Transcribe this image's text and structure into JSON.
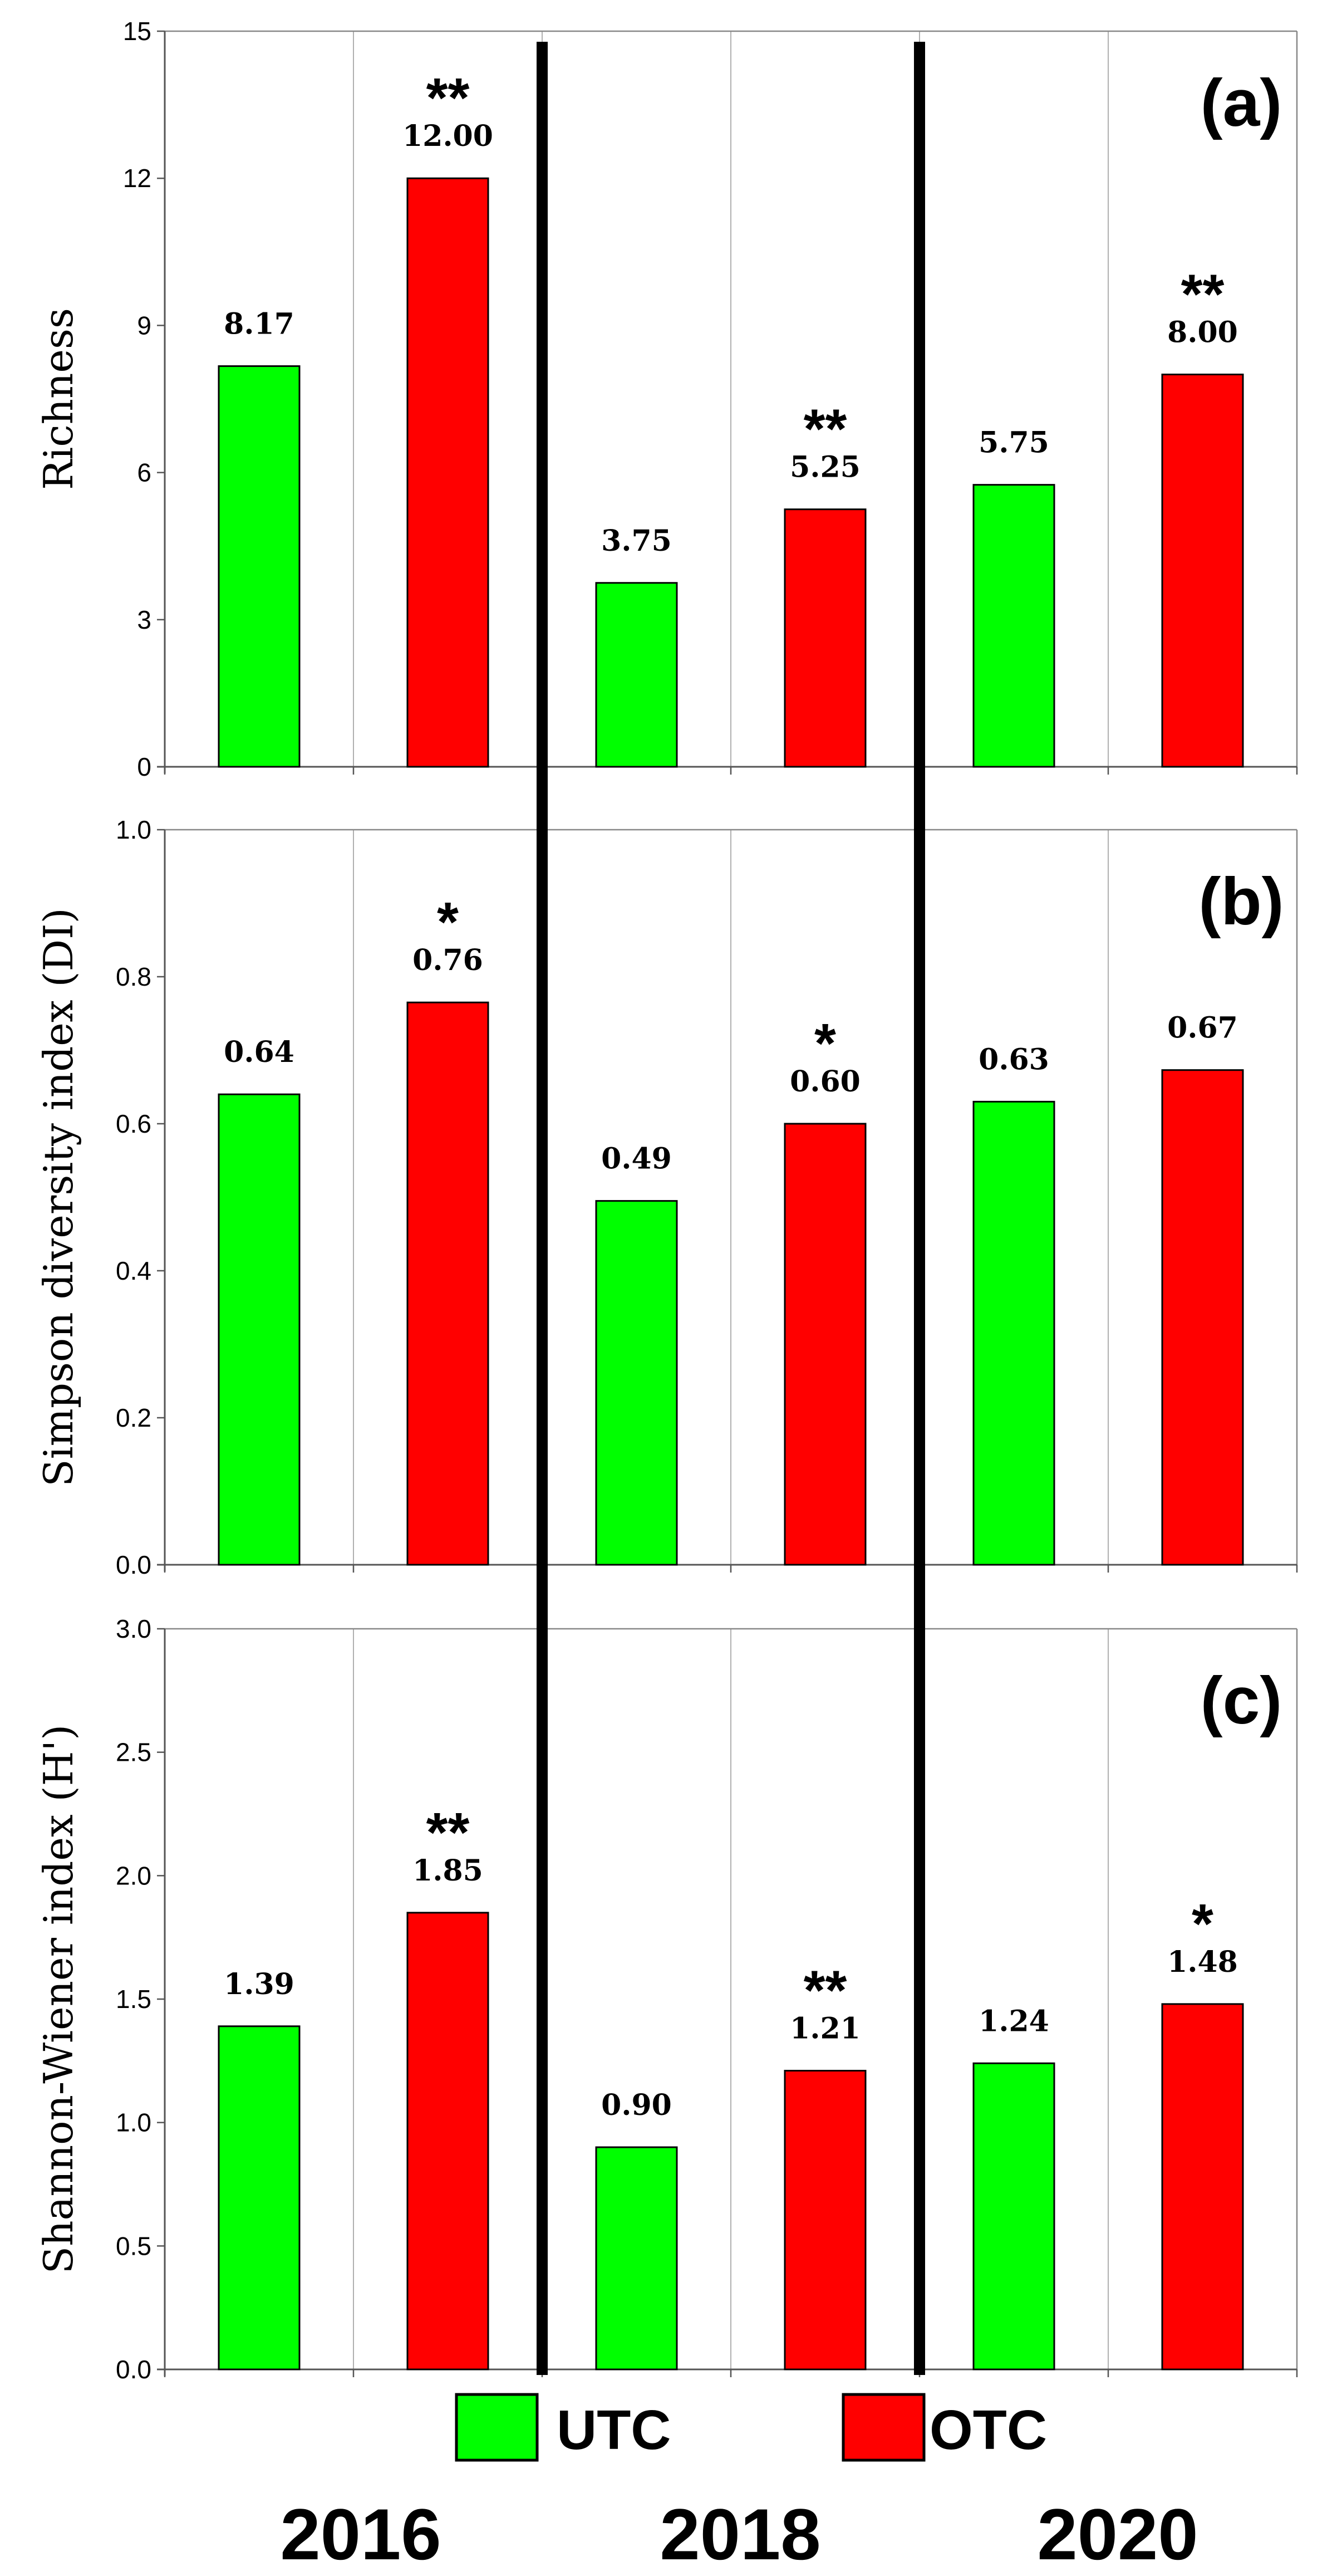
{
  "colors": {
    "UTC": "#00ff00",
    "OTC": "#ff0000",
    "separator": "#000000",
    "grid": "#b0b0b0"
  },
  "legend": [
    {
      "key": "UTC",
      "label": "UTC"
    },
    {
      "key": "OTC",
      "label": "OTC"
    }
  ],
  "years": [
    "2016",
    "2018",
    "2020"
  ],
  "chart_data": [
    {
      "type": "bar",
      "panel_label": "(a)",
      "ylabel": "Richness",
      "ylim": [
        0,
        15
      ],
      "yticks": [
        "0",
        "3",
        "6",
        "9",
        "12",
        "15"
      ],
      "categories": [
        "2016",
        "2018",
        "2020"
      ],
      "series": [
        {
          "name": "UTC",
          "values": [
            8.17,
            3.75,
            5.75
          ],
          "labels": [
            "8.17",
            "3.75",
            "5.75"
          ],
          "stars": [
            "",
            "",
            ""
          ]
        },
        {
          "name": "OTC",
          "values": [
            12.0,
            5.25,
            8.0
          ],
          "labels": [
            "12.00",
            "5.25",
            "8.00"
          ],
          "stars": [
            "**",
            "**",
            "**"
          ]
        }
      ]
    },
    {
      "type": "bar",
      "panel_label": "(b)",
      "ylabel": "Simpson diversity index (DI)",
      "ylim": [
        0,
        1
      ],
      "yticks": [
        "0.0",
        "0.2",
        "0.4",
        "0.6",
        "0.8",
        "1.0"
      ],
      "categories": [
        "2016",
        "2018",
        "2020"
      ],
      "series": [
        {
          "name": "UTC",
          "values": [
            0.64,
            0.495,
            0.63
          ],
          "labels": [
            "0.64",
            "0.49",
            "0.63"
          ],
          "stars": [
            "",
            "",
            ""
          ]
        },
        {
          "name": "OTC",
          "values": [
            0.765,
            0.6,
            0.673
          ],
          "labels": [
            "0.76",
            "0.60",
            "0.67"
          ],
          "stars": [
            "*",
            "*",
            ""
          ]
        }
      ]
    },
    {
      "type": "bar",
      "panel_label": "(c)",
      "ylabel": "Shannon-Wiener index (H')",
      "ylim": [
        0,
        3
      ],
      "yticks": [
        "0.0",
        "0.5",
        "1.0",
        "1.5",
        "2.0",
        "2.5",
        "3.0"
      ],
      "categories": [
        "2016",
        "2018",
        "2020"
      ],
      "series": [
        {
          "name": "UTC",
          "values": [
            1.39,
            0.9,
            1.24
          ],
          "labels": [
            "1.39",
            "0.90",
            "1.24"
          ],
          "stars": [
            "",
            "",
            ""
          ]
        },
        {
          "name": "OTC",
          "values": [
            1.85,
            1.21,
            1.48
          ],
          "labels": [
            "1.85",
            "1.21",
            "1.48"
          ],
          "stars": [
            "**",
            "**",
            "*"
          ]
        }
      ]
    }
  ]
}
